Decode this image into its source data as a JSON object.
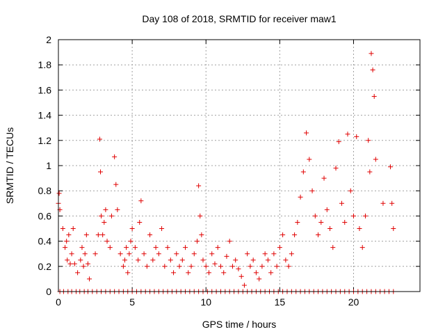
{
  "colors": {
    "series": "#e00000",
    "axis": "#000000",
    "grid": "#a0a0a0"
  },
  "chart_data": {
    "type": "scatter",
    "title": "Day 108 of 2018, SRMTID for receiver maw1",
    "xlabel": "GPS time / hours",
    "ylabel": "SRMTID / TECUs",
    "xlim": [
      0,
      24.5
    ],
    "ylim": [
      0,
      2
    ],
    "grid": true,
    "xticks": [
      0,
      5,
      10,
      15,
      20
    ],
    "xtick_labels": [
      "0",
      "5",
      "10",
      "15",
      "20"
    ],
    "yticks": [
      0,
      0.2,
      0.4,
      0.6,
      0.8,
      1,
      1.2,
      1.4,
      1.6,
      1.8,
      2
    ],
    "ytick_labels": [
      "0",
      "0.2",
      "0.4",
      "0.6",
      "0.8",
      "1",
      "1.2",
      "1.4",
      "1.6",
      "1.8",
      "2"
    ],
    "marker": "+",
    "series": [
      {
        "name": "SRMTID",
        "x": [
          0.0,
          0.05,
          0.1,
          0.3,
          0.45,
          0.55,
          0.6,
          0.7,
          0.8,
          0.9,
          1.0,
          1.1,
          1.3,
          1.5,
          1.6,
          1.7,
          1.8,
          1.9,
          2.0,
          2.1,
          2.5,
          2.7,
          2.8,
          2.85,
          2.9,
          3.0,
          3.1,
          3.2,
          3.3,
          3.5,
          3.6,
          3.8,
          3.9,
          4.0,
          4.2,
          4.4,
          4.5,
          4.6,
          4.7,
          4.8,
          4.9,
          5.0,
          5.2,
          5.4,
          5.5,
          5.6,
          5.8,
          6.0,
          6.2,
          6.4,
          6.6,
          6.8,
          7.0,
          7.2,
          7.4,
          7.6,
          7.8,
          8.0,
          8.2,
          8.4,
          8.6,
          8.8,
          9.0,
          9.2,
          9.4,
          9.5,
          9.6,
          9.7,
          9.8,
          10.0,
          10.2,
          10.4,
          10.6,
          10.8,
          11.0,
          11.2,
          11.4,
          11.6,
          11.8,
          12.0,
          12.2,
          12.4,
          12.6,
          12.8,
          13.0,
          13.2,
          13.4,
          13.6,
          13.8,
          14.0,
          14.2,
          14.4,
          14.6,
          14.8,
          15.0,
          15.2,
          15.4,
          15.6,
          15.8,
          16.0,
          16.2,
          16.4,
          16.6,
          16.8,
          17.0,
          17.2,
          17.4,
          17.6,
          17.8,
          18.0,
          18.2,
          18.4,
          18.6,
          18.8,
          19.0,
          19.2,
          19.4,
          19.6,
          19.8,
          20.0,
          20.2,
          20.4,
          20.6,
          20.8,
          21.0,
          21.1,
          21.2,
          21.3,
          21.4,
          21.5,
          22.0,
          22.5,
          22.6,
          22.7
        ],
        "values": [
          0.7,
          0.78,
          0.65,
          0.5,
          0.35,
          0.4,
          0.25,
          0.45,
          0.22,
          0.3,
          0.5,
          0.22,
          0.15,
          0.25,
          0.35,
          0.2,
          0.3,
          0.45,
          0.22,
          0.1,
          0.3,
          0.45,
          1.21,
          0.95,
          0.6,
          0.45,
          0.55,
          0.65,
          0.4,
          0.35,
          0.6,
          1.07,
          0.85,
          0.65,
          0.3,
          0.2,
          0.25,
          0.35,
          0.15,
          0.3,
          0.4,
          0.5,
          0.35,
          0.25,
          0.55,
          0.72,
          0.3,
          0.2,
          0.45,
          0.25,
          0.35,
          0.3,
          0.5,
          0.2,
          0.35,
          0.25,
          0.15,
          0.3,
          0.2,
          0.25,
          0.35,
          0.15,
          0.2,
          0.3,
          0.4,
          0.84,
          0.6,
          0.45,
          0.25,
          0.2,
          0.15,
          0.3,
          0.22,
          0.35,
          0.2,
          0.15,
          0.28,
          0.4,
          0.2,
          0.25,
          0.18,
          0.12,
          0.05,
          0.3,
          0.2,
          0.25,
          0.15,
          0.1,
          0.2,
          0.3,
          0.25,
          0.15,
          0.3,
          0.2,
          0.35,
          0.45,
          0.25,
          0.2,
          0.3,
          0.45,
          0.55,
          0.75,
          0.95,
          1.26,
          1.05,
          0.8,
          0.6,
          0.45,
          0.55,
          0.9,
          0.65,
          0.5,
          0.35,
          0.98,
          1.19,
          0.7,
          0.55,
          1.25,
          0.8,
          0.6,
          1.23,
          0.5,
          0.35,
          0.6,
          1.2,
          0.95,
          1.89,
          1.76,
          1.55,
          1.05,
          0.7,
          0.99,
          0.7,
          0.5
        ]
      },
      {
        "name": "SRMTID (zero baseline)",
        "x": [
          0.1,
          0.35,
          0.65,
          0.9,
          1.2,
          1.45,
          1.75,
          2.0,
          2.3,
          2.6,
          2.9,
          3.2,
          3.5,
          3.8,
          4.1,
          4.4,
          4.7,
          5.0,
          5.3,
          5.6,
          5.9,
          6.2,
          6.5,
          6.8,
          7.1,
          7.4,
          7.7,
          8.0,
          8.3,
          8.6,
          8.9,
          9.2,
          9.5,
          9.8,
          10.1,
          10.4,
          10.7,
          11.0,
          11.3,
          11.6,
          11.9,
          12.2,
          12.5,
          12.8,
          13.1,
          13.4,
          13.7,
          14.0,
          14.3,
          14.6,
          14.9,
          15.2,
          15.5,
          15.8,
          16.1,
          16.4,
          16.7,
          17.0,
          17.3,
          17.6,
          17.9,
          18.2,
          18.5,
          18.8,
          19.1,
          19.4,
          19.7,
          20.0,
          20.3,
          20.6,
          20.9,
          21.2,
          21.5,
          21.8,
          22.1,
          22.4,
          22.7
        ],
        "values": [
          0,
          0,
          0,
          0,
          0,
          0,
          0,
          0,
          0,
          0,
          0,
          0,
          0,
          0,
          0,
          0,
          0,
          0,
          0,
          0,
          0,
          0,
          0,
          0,
          0,
          0,
          0,
          0,
          0,
          0,
          0,
          0,
          0,
          0,
          0,
          0,
          0,
          0,
          0,
          0,
          0,
          0,
          0,
          0,
          0,
          0,
          0,
          0,
          0,
          0,
          0,
          0,
          0,
          0,
          0,
          0,
          0,
          0,
          0,
          0,
          0,
          0,
          0,
          0,
          0,
          0,
          0,
          0,
          0,
          0,
          0,
          0,
          0,
          0,
          0,
          0,
          0
        ]
      }
    ]
  }
}
